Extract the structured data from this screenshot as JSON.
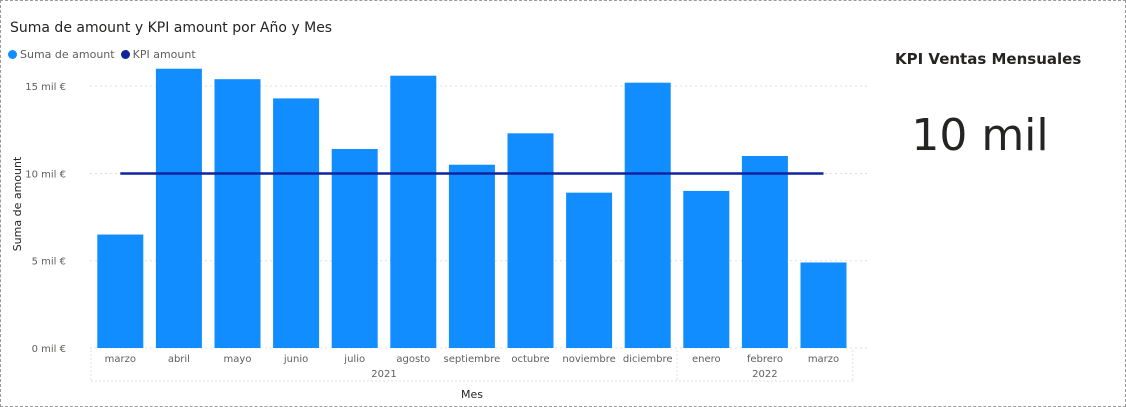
{
  "colors": {
    "bar": "#118DFF",
    "line": "#12239E",
    "grid": "#e1dfdd",
    "axis_text": "#605e5c"
  },
  "chart_data": {
    "type": "bar",
    "title": "Suma de amount y KPI amount por Año y Mes",
    "xlabel": "Mes",
    "ylabel": "Suma de amount",
    "categories": [
      "marzo",
      "abril",
      "mayo",
      "junio",
      "julio",
      "agosto",
      "septiembre",
      "octubre",
      "noviembre",
      "diciembre",
      "enero",
      "febrero",
      "marzo"
    ],
    "year_groups": [
      {
        "label": "2021",
        "count": 10
      },
      {
        "label": "2022",
        "count": 3
      }
    ],
    "y_ticks": [
      {
        "value": 0,
        "label": "0 mil €"
      },
      {
        "value": 5000,
        "label": "5 mil €"
      },
      {
        "value": 10000,
        "label": "10 mil €"
      },
      {
        "value": 15000,
        "label": "15 mil €"
      }
    ],
    "ylim": [
      0,
      16500
    ],
    "grid": true,
    "legend_position": "top-left",
    "series": [
      {
        "name": "Suma de amount",
        "type": "bar",
        "values": [
          6500,
          16000,
          15400,
          14300,
          11400,
          15600,
          10500,
          12300,
          8900,
          15200,
          9000,
          11000,
          4900
        ]
      },
      {
        "name": "KPI amount",
        "type": "line",
        "values": [
          10000,
          10000,
          10000,
          10000,
          10000,
          10000,
          10000,
          10000,
          10000,
          10000,
          10000,
          10000,
          10000
        ]
      }
    ]
  },
  "kpi_card": {
    "title": "KPI Ventas Mensuales",
    "value": "10 mil"
  }
}
